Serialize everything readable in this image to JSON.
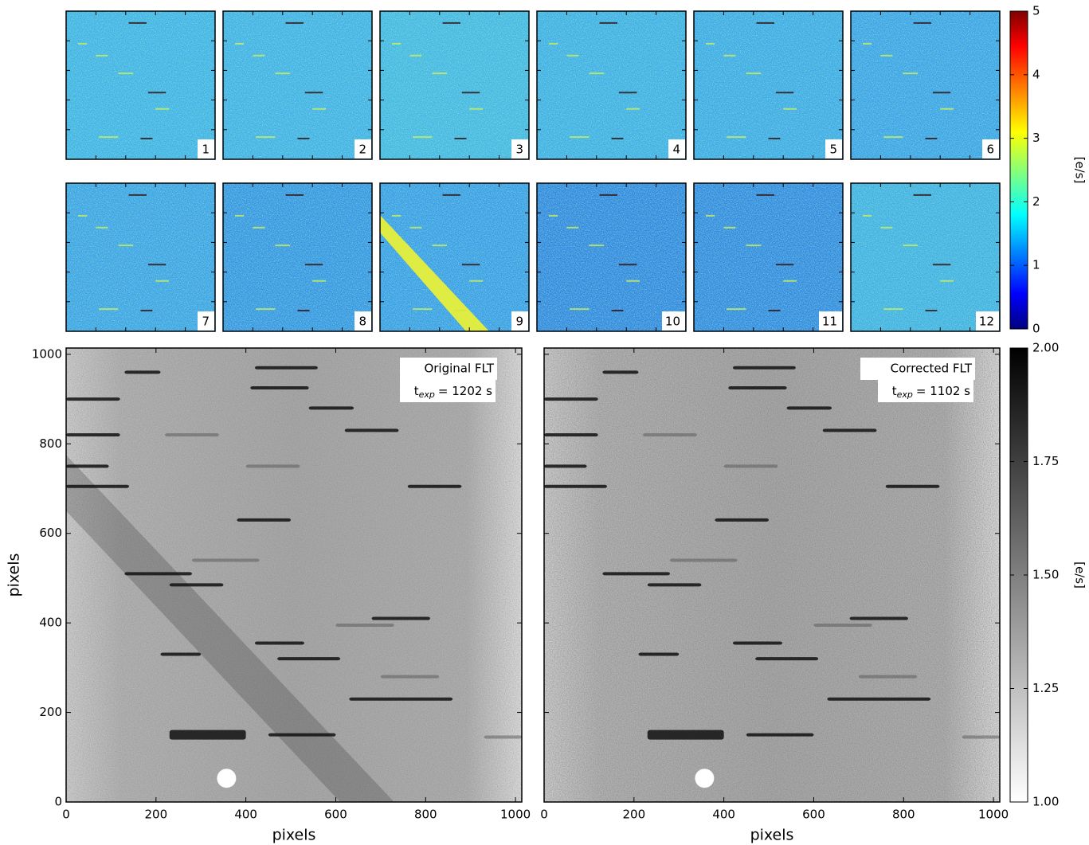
{
  "chart_data": [
    {
      "type": "image-grid",
      "panels": [
        "1",
        "2",
        "3",
        "4",
        "5",
        "6",
        "7",
        "8",
        "9",
        "10",
        "11",
        "12"
      ],
      "colormap": "jet",
      "colorbar": {
        "label": "[e/s]",
        "lim": [
          0,
          5
        ],
        "ticks": [
          0,
          1,
          2,
          3,
          4,
          5
        ]
      }
    },
    {
      "type": "image",
      "title": "Original FLT",
      "exposure": {
        "symbol": "t",
        "subscript": "exp",
        "text": "= 1202 s"
      },
      "xlabel": "pixels",
      "ylabel": "pixels",
      "xlim": [
        0,
        1014
      ],
      "ylim": [
        0,
        1014
      ],
      "xticks": [
        0,
        200,
        400,
        600,
        800,
        1000
      ],
      "yticks": [
        0,
        200,
        400,
        600,
        800,
        1000
      ]
    },
    {
      "type": "image",
      "title": "Corrected FLT",
      "exposure": {
        "symbol": "t",
        "subscript": "exp",
        "text": "= 1102 s"
      },
      "xlabel": "pixels",
      "xlim": [
        0,
        1014
      ],
      "ylim": [
        0,
        1014
      ],
      "xticks": [
        0,
        200,
        400,
        600,
        800,
        1000
      ]
    },
    {
      "type": "colorbar",
      "label": "[e/s]",
      "colormap": "gray_r",
      "lim": [
        1,
        2
      ],
      "ticks": [
        {
          "value": 1,
          "label": "1.00"
        },
        1.25,
        {
          "value": 1.5,
          "label": "1.50"
        },
        1.75,
        {
          "value": 2,
          "label": "2.00"
        }
      ]
    }
  ]
}
